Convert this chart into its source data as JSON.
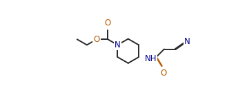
{
  "bg_color": "#ffffff",
  "line_color": "#2a2a2a",
  "atom_colors": {
    "N": "#00008B",
    "O": "#b85c00",
    "C": "#2a2a2a"
  },
  "figsize": [
    3.58,
    1.47
  ],
  "dpi": 100,
  "lw": 1.4
}
